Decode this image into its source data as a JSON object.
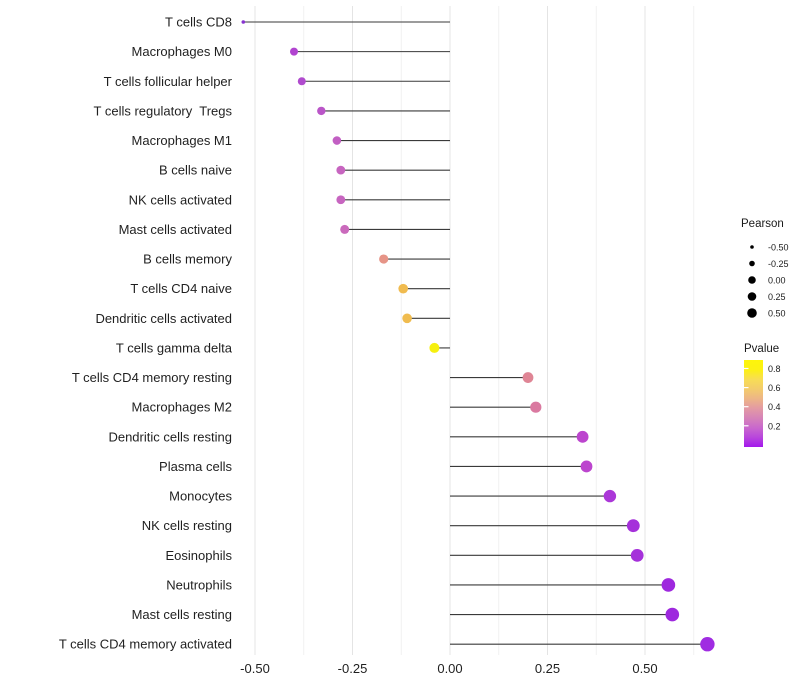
{
  "chart_data": {
    "type": "scatter",
    "variant": "horizontal-lollipop",
    "title": "",
    "xlabel": "",
    "ylabel": "",
    "xlim": [
      -0.545,
      0.72
    ],
    "grid": "vertical-only",
    "x_ticks": [
      -0.5,
      -0.25,
      0.0,
      0.25,
      0.5
    ],
    "x_tick_labels": [
      "-0.50",
      "-0.25",
      "0.00",
      "0.25",
      "0.50"
    ],
    "x_minor_ticks": [
      -0.375,
      -0.125,
      0.125,
      0.375,
      0.625
    ],
    "points": [
      {
        "label": "T cells CD8",
        "pearson": -0.53,
        "dot_color": "#8833d0",
        "dot_radius_px": 1.8
      },
      {
        "label": "Macrophages M0",
        "pearson": -0.4,
        "dot_color": "#b144d0",
        "dot_radius_px": 4.0
      },
      {
        "label": "T cells follicular helper",
        "pearson": -0.38,
        "dot_color": "#b04bce",
        "dot_radius_px": 4.0
      },
      {
        "label": "T cells regulatory  Tregs",
        "pearson": -0.33,
        "dot_color": "#ba55c8",
        "dot_radius_px": 4.2
      },
      {
        "label": "Macrophages M1",
        "pearson": -0.29,
        "dot_color": "#c25fc3",
        "dot_radius_px": 4.3
      },
      {
        "label": "B cells naive",
        "pearson": -0.28,
        "dot_color": "#c765c0",
        "dot_radius_px": 4.4
      },
      {
        "label": "NK cells activated",
        "pearson": -0.28,
        "dot_color": "#c765c0",
        "dot_radius_px": 4.4
      },
      {
        "label": "Mast cells activated",
        "pearson": -0.27,
        "dot_color": "#ca6abc",
        "dot_radius_px": 4.5
      },
      {
        "label": "B cells memory",
        "pearson": -0.17,
        "dot_color": "#e69487",
        "dot_radius_px": 4.6
      },
      {
        "label": "T cells CD4 naive",
        "pearson": -0.12,
        "dot_color": "#f0bb4f",
        "dot_radius_px": 4.8
      },
      {
        "label": "Dendritic cells activated",
        "pearson": -0.11,
        "dot_color": "#f0bc4f",
        "dot_radius_px": 4.8
      },
      {
        "label": "T cells gamma delta",
        "pearson": -0.04,
        "dot_color": "#f6f00e",
        "dot_radius_px": 5.0
      },
      {
        "label": "T cells CD4 memory resting",
        "pearson": 0.2,
        "dot_color": "#df8595",
        "dot_radius_px": 5.4
      },
      {
        "label": "Macrophages M2",
        "pearson": 0.22,
        "dot_color": "#da79a0",
        "dot_radius_px": 5.6
      },
      {
        "label": "Dendritic cells resting",
        "pearson": 0.34,
        "dot_color": "#bc45ce",
        "dot_radius_px": 5.9
      },
      {
        "label": "Plasma cells",
        "pearson": 0.35,
        "dot_color": "#bc45ce",
        "dot_radius_px": 5.9
      },
      {
        "label": "Monocytes",
        "pearson": 0.41,
        "dot_color": "#ab37d8",
        "dot_radius_px": 6.2
      },
      {
        "label": "NK cells resting",
        "pearson": 0.47,
        "dot_color": "#a530da",
        "dot_radius_px": 6.4
      },
      {
        "label": "Eosinophils",
        "pearson": 0.48,
        "dot_color": "#a530da",
        "dot_radius_px": 6.4
      },
      {
        "label": "Neutrophils",
        "pearson": 0.56,
        "dot_color": "#9e28de",
        "dot_radius_px": 6.8
      },
      {
        "label": "Mast cells resting",
        "pearson": 0.57,
        "dot_color": "#9e28de",
        "dot_radius_px": 6.8
      },
      {
        "label": "T cells CD4 memory activated",
        "pearson": 0.66,
        "dot_color": "#a02ce2",
        "dot_radius_px": 7.2
      }
    ],
    "legend": {
      "size": {
        "title": "Pearson",
        "entries": [
          {
            "label": "-0.50",
            "radius_px": 1.8
          },
          {
            "label": "-0.25",
            "radius_px": 2.8
          },
          {
            "label": "0.00",
            "radius_px": 3.8
          },
          {
            "label": "0.25",
            "radius_px": 4.3
          },
          {
            "label": "0.50",
            "radius_px": 4.8
          }
        ],
        "dot_color": "#000000"
      },
      "color": {
        "title": "Pvalue",
        "tick_labels": [
          "0.8",
          "0.6",
          "0.4",
          "0.2"
        ],
        "gradient_top_to_bottom": [
          "#fdf50a",
          "#fcf113",
          "#f8dd55",
          "#f3cc6c",
          "#edb587",
          "#e39aa4",
          "#d683b8",
          "#c968cd",
          "#b846dc",
          "#a318ec"
        ]
      }
    },
    "colors": {
      "stem": "#3a3a3a",
      "grid_major": "#e4e4e4",
      "grid_minor": "#f1f1f1",
      "axis_text": "#1f1f1f",
      "legend_text": "#1a1a1a"
    }
  }
}
